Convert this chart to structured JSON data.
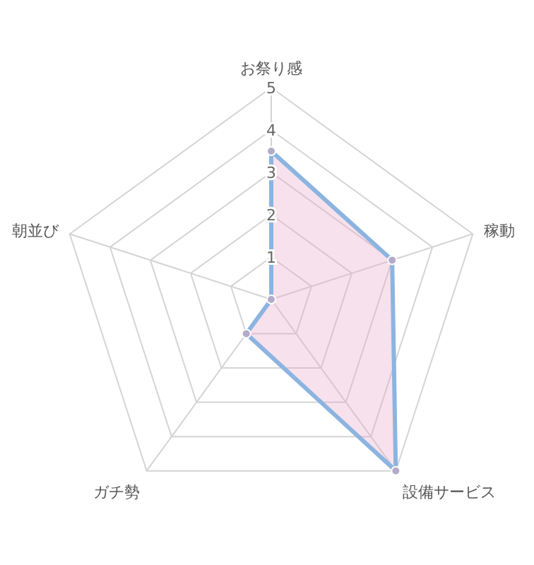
{
  "chart_data": {
    "type": "radar",
    "categories": [
      "お祭り感",
      "稼動",
      "設備サービス",
      "ガチ勢",
      "朝並び"
    ],
    "series": [
      {
        "color": "#8cb4e0",
        "values": [
          3.5,
          3,
          5,
          1,
          0
        ]
      }
    ],
    "ylim": [
      0,
      5
    ],
    "yticks": [
      1,
      2,
      3,
      4,
      5
    ],
    "marker": "circle",
    "grid": true
  }
}
